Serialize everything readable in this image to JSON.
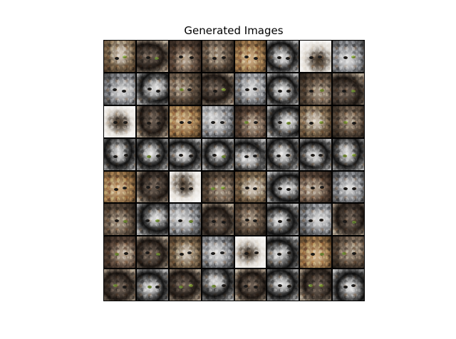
{
  "figure": {
    "title": "Generated Images",
    "grid_rows": 8,
    "grid_cols": 8,
    "tile_palette": [
      [
        "#6b5a44",
        "#d8cdbf",
        "#3a2a1c"
      ],
      [
        "#111111",
        "#e8e8e8",
        "#bbbbbb"
      ],
      [
        "#4b3b30",
        "#b9a793",
        "#1b1410"
      ],
      [
        "#7a7c80",
        "#dcdcdc",
        "#2e2e2e"
      ],
      [
        "#8a6a45",
        "#cfae84",
        "#3a2a18"
      ],
      [
        "#1c1612",
        "#6a5d52",
        "#b8a894"
      ],
      [
        "#e6e2dc",
        "#3c3024",
        "#ffffff"
      ],
      [
        "#4e4135",
        "#a49482",
        "#17130f"
      ]
    ]
  }
}
